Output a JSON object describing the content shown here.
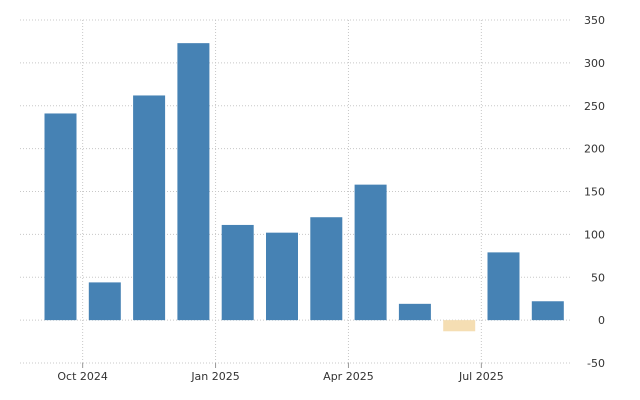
{
  "chart_data": {
    "type": "bar",
    "title": "",
    "xlabel": "",
    "ylabel": "",
    "categories": [
      "2024-09",
      "2024-10",
      "2024-11",
      "2024-12",
      "2025-01",
      "2025-02",
      "2025-03",
      "2025-04",
      "2025-05",
      "2025-06",
      "2025-07",
      "2025-08"
    ],
    "values": [
      241,
      44,
      262,
      323,
      111,
      102,
      120,
      158,
      19,
      -13,
      79,
      22
    ],
    "ylim": [
      -50,
      350
    ],
    "y_ticks": [
      350,
      300,
      250,
      200,
      150,
      100,
      50,
      0,
      -50
    ],
    "y_tick_labels": [
      "350",
      "300",
      "250",
      "200",
      "150",
      "100",
      "50",
      "0",
      "-50"
    ],
    "x_tick_labels": [
      {
        "label": "Oct 2024",
        "category": "2024-10"
      },
      {
        "label": "Jan 2025",
        "category": "2025-01"
      },
      {
        "label": "Apr 2025",
        "category": "2025-04"
      },
      {
        "label": "Jul 2025",
        "category": "2025-07"
      }
    ],
    "y_axis_side": "right",
    "grid": true,
    "legend": "none",
    "colors": {
      "positive": "#4682b4",
      "negative": "#f5deb3"
    }
  }
}
